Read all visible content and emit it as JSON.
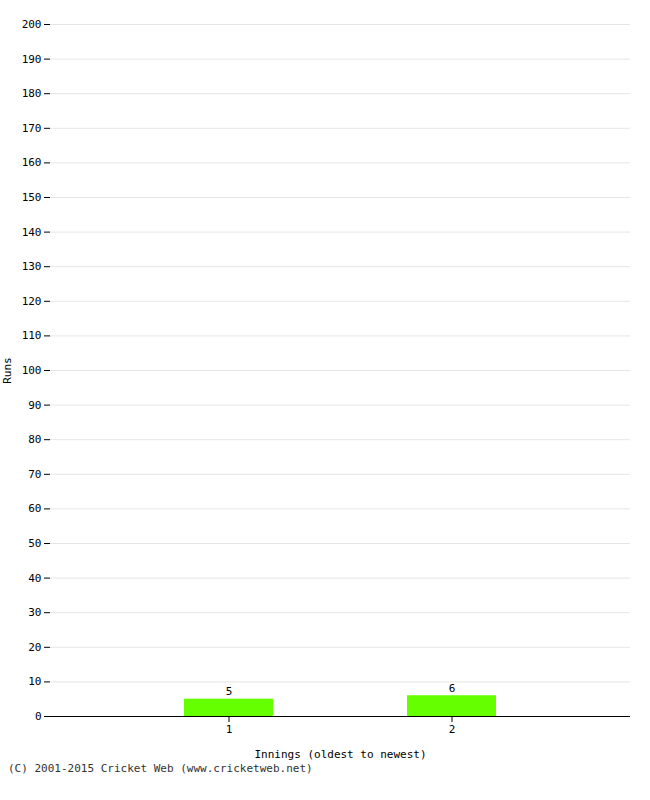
{
  "chart_data": {
    "type": "bar",
    "xlabel": "Innings (oldest to newest)",
    "ylabel": "Runs",
    "categories": [
      1,
      2
    ],
    "values": [
      5,
      6
    ],
    "color": "#66ff00",
    "ylim": [
      0,
      200
    ],
    "yticks": [
      0,
      10,
      20,
      30,
      40,
      50,
      60,
      70,
      80,
      90,
      100,
      110,
      120,
      130,
      140,
      150,
      160,
      170,
      180,
      190,
      200
    ],
    "grid": true,
    "data_labels": true,
    "annotations": [
      "(C) 2001-2015 Cricket Web (www.cricketweb.net)"
    ]
  }
}
